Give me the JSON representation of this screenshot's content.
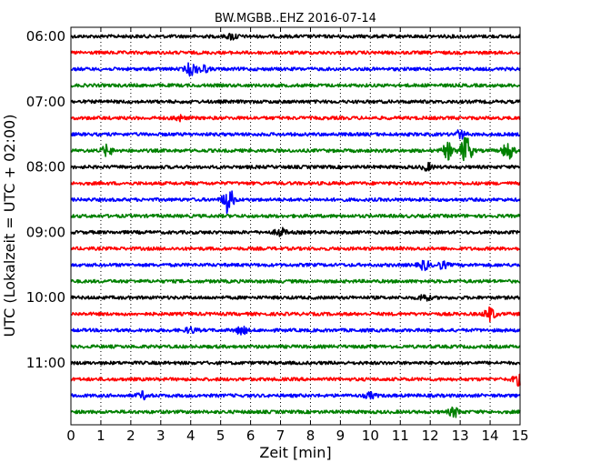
{
  "chart_data": {
    "type": "line",
    "title": "BW.MGBB..EHZ 2016-07-14",
    "xlabel": "Zeit  [min]",
    "ylabel": "UTC (Lokalzeit = UTC + 02:00)",
    "xlim": [
      0,
      15
    ],
    "x_ticks": [
      0,
      1,
      2,
      3,
      4,
      5,
      6,
      7,
      8,
      9,
      10,
      11,
      12,
      13,
      14,
      15
    ],
    "x_tick_labels": [
      "0",
      "1",
      "2",
      "3",
      "4",
      "5",
      "6",
      "7",
      "8",
      "9",
      "10",
      "11",
      "12",
      "13",
      "14",
      "15"
    ],
    "y_tick_labels": [
      "06:00",
      "07:00",
      "08:00",
      "09:00",
      "10:00",
      "11:00"
    ],
    "grid": "vertical dotted at each minute",
    "trace_colors": [
      "#000000",
      "#ff0000",
      "#0000ff",
      "#008000"
    ],
    "traces": [
      {
        "start": "06:00",
        "color": "#000000",
        "events": [
          {
            "t": 5.4,
            "amp": 0.25
          }
        ]
      },
      {
        "start": "06:15",
        "color": "#ff0000",
        "events": []
      },
      {
        "start": "06:30",
        "color": "#0000ff",
        "events": [
          {
            "t": 4.0,
            "amp": 0.45
          },
          {
            "t": 4.4,
            "amp": 0.3
          }
        ]
      },
      {
        "start": "06:45",
        "color": "#008000",
        "events": []
      },
      {
        "start": "07:00",
        "color": "#000000",
        "events": []
      },
      {
        "start": "07:15",
        "color": "#ff0000",
        "events": [
          {
            "t": 3.6,
            "amp": 0.2
          }
        ]
      },
      {
        "start": "07:30",
        "color": "#0000ff",
        "events": [
          {
            "t": 13.0,
            "amp": 0.3
          }
        ]
      },
      {
        "start": "07:45",
        "color": "#008000",
        "events": [
          {
            "t": 1.2,
            "amp": 0.4
          },
          {
            "t": 12.6,
            "amp": 0.6
          },
          {
            "t": 13.2,
            "amp": 1.2
          },
          {
            "t": 14.6,
            "amp": 0.7
          }
        ]
      },
      {
        "start": "08:00",
        "color": "#000000",
        "events": [
          {
            "t": 11.9,
            "amp": 0.25
          }
        ]
      },
      {
        "start": "08:15",
        "color": "#ff0000",
        "events": []
      },
      {
        "start": "08:30",
        "color": "#0000ff",
        "events": [
          {
            "t": 5.25,
            "amp": 1.0
          }
        ]
      },
      {
        "start": "08:45",
        "color": "#008000",
        "events": []
      },
      {
        "start": "09:00",
        "color": "#000000",
        "events": [
          {
            "t": 7.0,
            "amp": 0.3
          }
        ]
      },
      {
        "start": "09:15",
        "color": "#ff0000",
        "events": []
      },
      {
        "start": "09:30",
        "color": "#0000ff",
        "events": [
          {
            "t": 11.8,
            "amp": 0.35
          },
          {
            "t": 12.4,
            "amp": 0.25
          }
        ]
      },
      {
        "start": "09:45",
        "color": "#008000",
        "events": []
      },
      {
        "start": "10:00",
        "color": "#000000",
        "events": [
          {
            "t": 11.8,
            "amp": 0.25
          }
        ]
      },
      {
        "start": "10:15",
        "color": "#ff0000",
        "events": [
          {
            "t": 14.0,
            "amp": 0.5
          }
        ]
      },
      {
        "start": "10:30",
        "color": "#0000ff",
        "events": [
          {
            "t": 5.7,
            "amp": 0.3
          },
          {
            "t": 4.0,
            "amp": 0.2
          }
        ]
      },
      {
        "start": "10:45",
        "color": "#008000",
        "events": []
      },
      {
        "start": "11:00",
        "color": "#000000",
        "events": []
      },
      {
        "start": "11:15",
        "color": "#ff0000",
        "events": [
          {
            "t": 14.95,
            "amp": 0.4
          }
        ]
      },
      {
        "start": "11:30",
        "color": "#0000ff",
        "events": [
          {
            "t": 2.4,
            "amp": 0.25
          },
          {
            "t": 10.0,
            "amp": 0.2
          }
        ]
      },
      {
        "start": "11:45",
        "color": "#008000",
        "events": [
          {
            "t": 12.8,
            "amp": 0.35
          }
        ]
      }
    ]
  }
}
